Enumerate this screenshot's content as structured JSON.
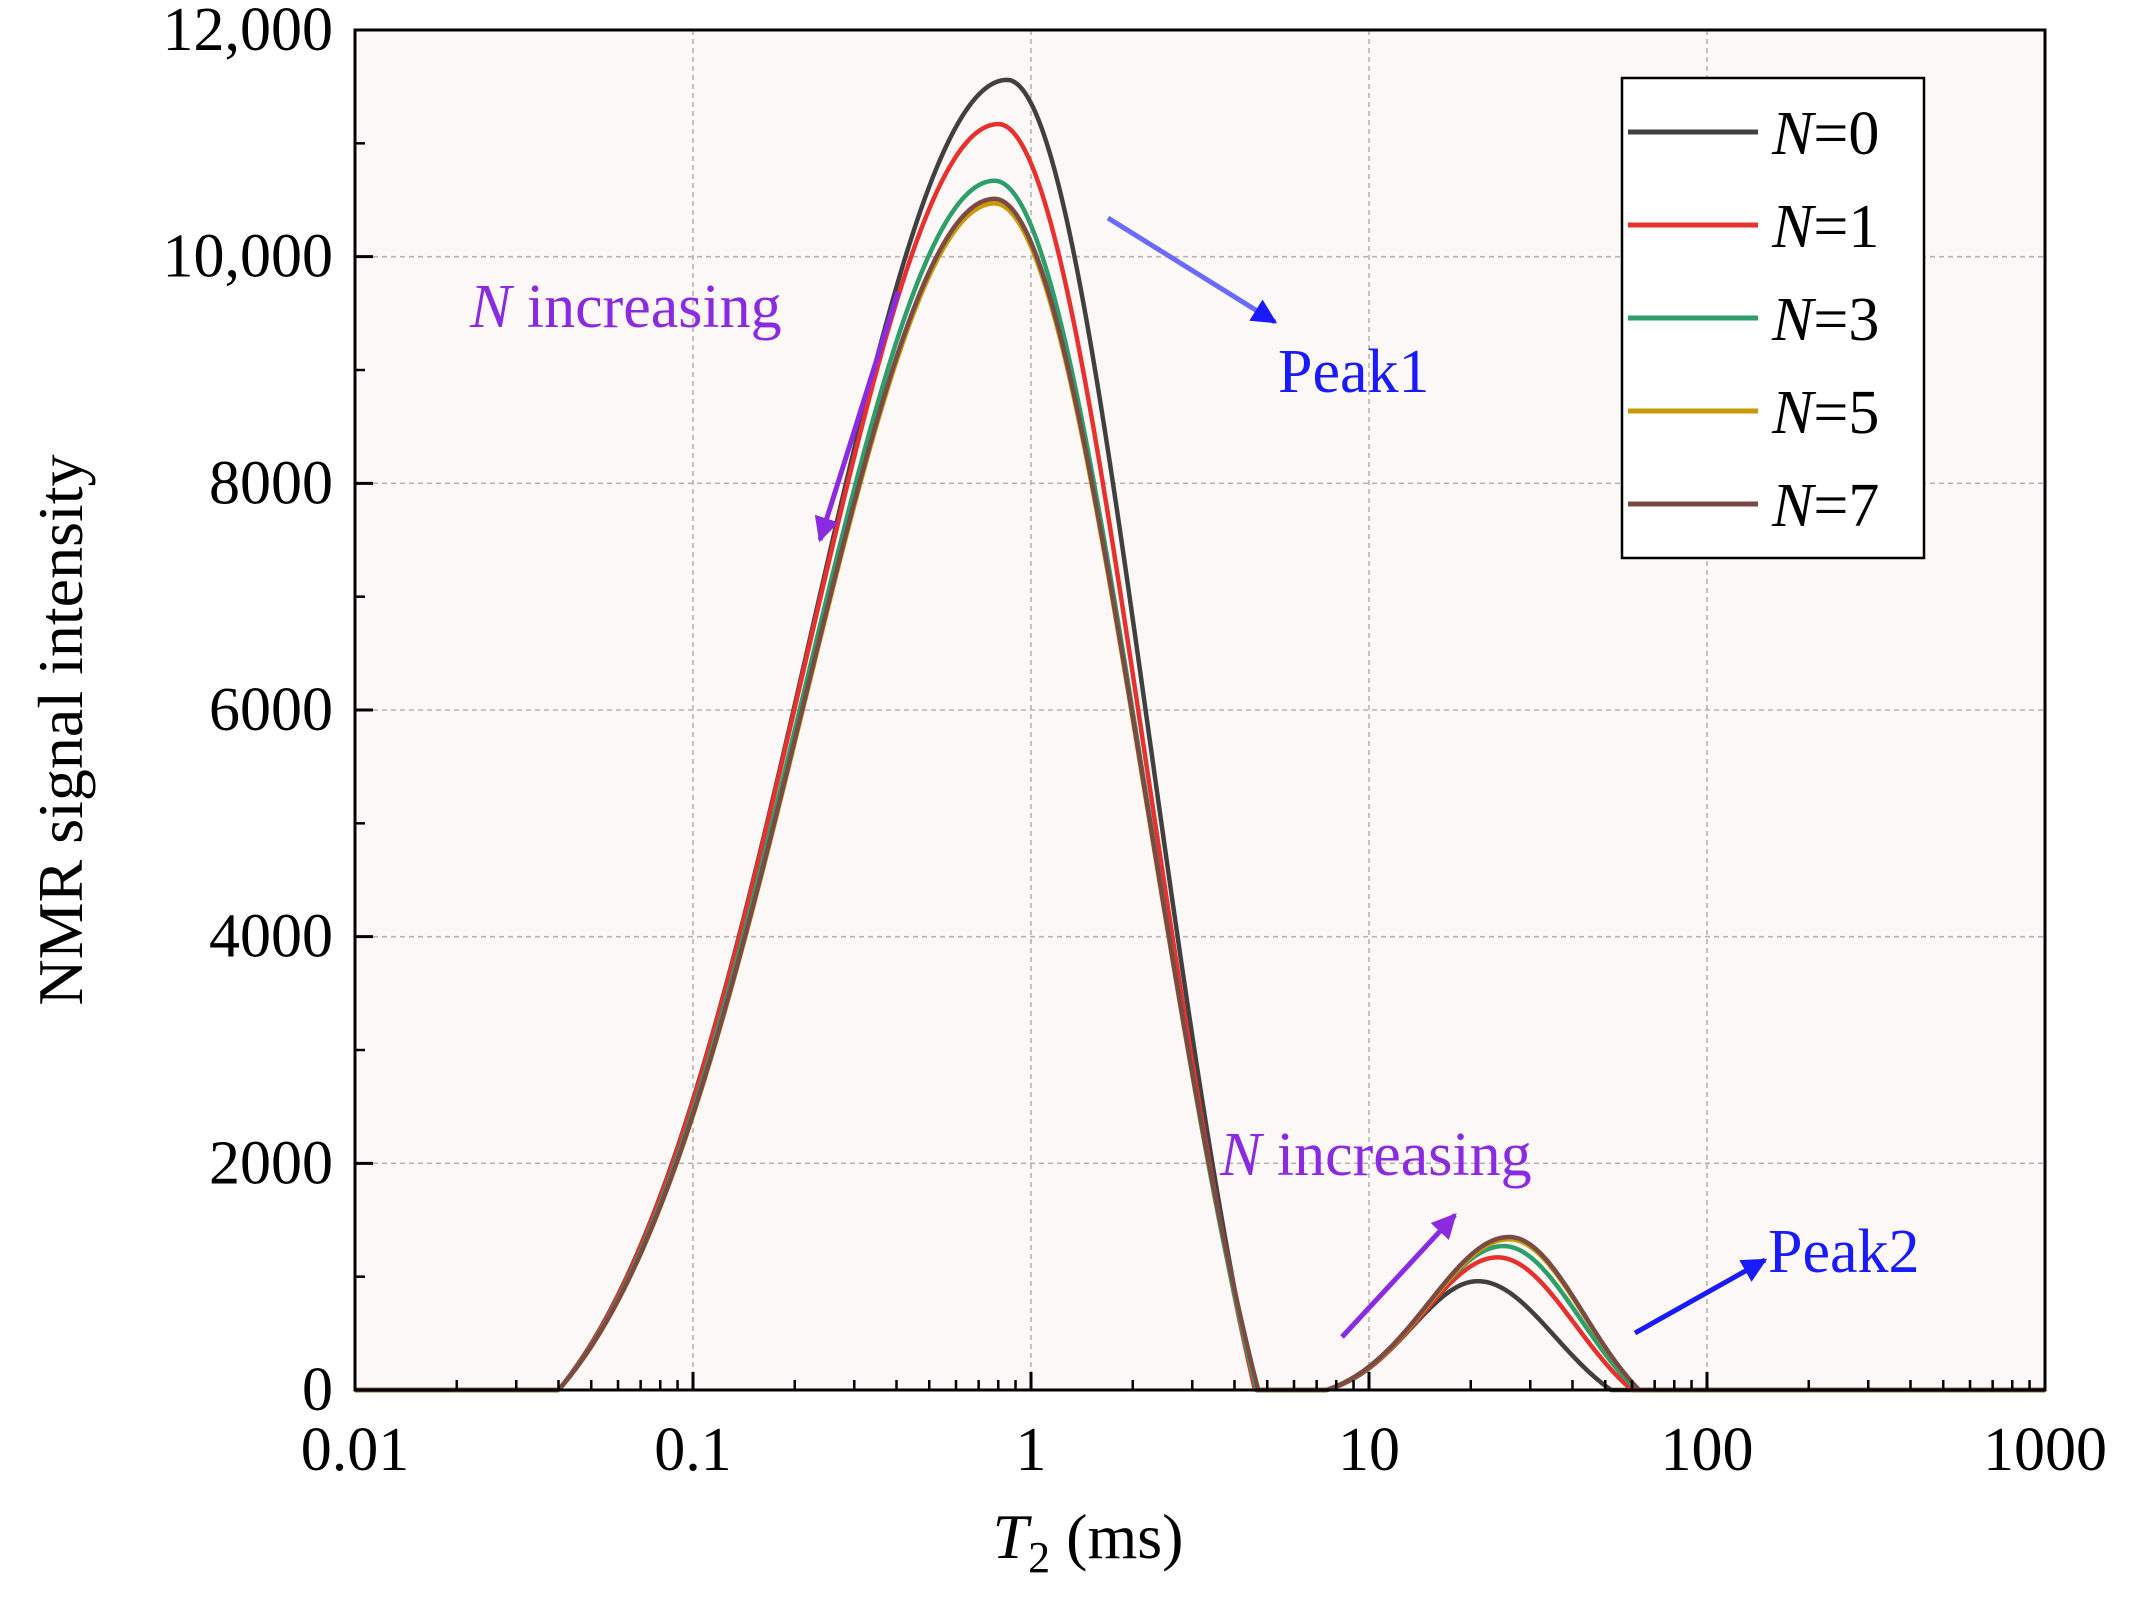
{
  "chart_data": {
    "type": "line",
    "xscale": "log",
    "xlabel_italic": "T",
    "xlabel_sub": "2",
    "xlabel_rest": " (ms)",
    "ylabel": "NMR signal intensity",
    "xlim": [
      0.01,
      1000
    ],
    "ylim": [
      0,
      12000
    ],
    "xticks": [
      0.01,
      0.1,
      1,
      10,
      100,
      1000
    ],
    "xtick_labels": [
      "0.01",
      "0.1",
      "1",
      "10",
      "100",
      "1000"
    ],
    "yticks": [
      0,
      2000,
      4000,
      6000,
      8000,
      10000,
      12000
    ],
    "ytick_labels": [
      "0",
      "2000",
      "4000",
      "6000",
      "8000",
      "10,000",
      "12,000"
    ],
    "grid": true,
    "legend_position": "top-right",
    "series": [
      {
        "name": "N=0",
        "label_var": "N",
        "label_rest": "=0",
        "color": "#404040",
        "peak1": {
          "start": 0.04,
          "center": 0.85,
          "height": 11560,
          "end": 4.6
        },
        "peak2": {
          "start": 7.5,
          "center": 21,
          "height": 960,
          "end": 52
        }
      },
      {
        "name": "N=1",
        "label_var": "N",
        "label_rest": "=1",
        "color": "#e8312f",
        "peak1": {
          "start": 0.04,
          "center": 0.8,
          "height": 11170,
          "end": 4.6
        },
        "peak2": {
          "start": 7.5,
          "center": 24,
          "height": 1170,
          "end": 60
        }
      },
      {
        "name": "N=3",
        "label_var": "N",
        "label_rest": "=3",
        "color": "#2e9e6a",
        "peak1": {
          "start": 0.04,
          "center": 0.78,
          "height": 10670,
          "end": 4.65
        },
        "peak2": {
          "start": 7.5,
          "center": 25,
          "height": 1270,
          "end": 62
        }
      },
      {
        "name": "N=5",
        "label_var": "N",
        "label_rest": "=5",
        "color": "#c99a06",
        "peak1": {
          "start": 0.04,
          "center": 0.78,
          "height": 10470,
          "end": 4.7
        },
        "peak2": {
          "start": 7.5,
          "center": 26,
          "height": 1330,
          "end": 63
        }
      },
      {
        "name": "N=7",
        "label_var": "N",
        "label_rest": "=7",
        "color": "#7a4a44",
        "peak1": {
          "start": 0.04,
          "center": 0.78,
          "height": 10510,
          "end": 4.7
        },
        "peak2": {
          "start": 7.5,
          "center": 26,
          "height": 1350,
          "end": 63
        }
      }
    ],
    "annotations": [
      {
        "id": "n-increasing-1",
        "var": "N",
        "rest": " increasing",
        "color": "#8a2be2"
      },
      {
        "id": "peak1",
        "text": "Peak1",
        "color": "#1a1aff"
      },
      {
        "id": "n-increasing-2",
        "var": "N",
        "rest": " increasing",
        "color": "#8a2be2"
      },
      {
        "id": "peak2",
        "text": "Peak2",
        "color": "#1a1aff"
      }
    ]
  }
}
